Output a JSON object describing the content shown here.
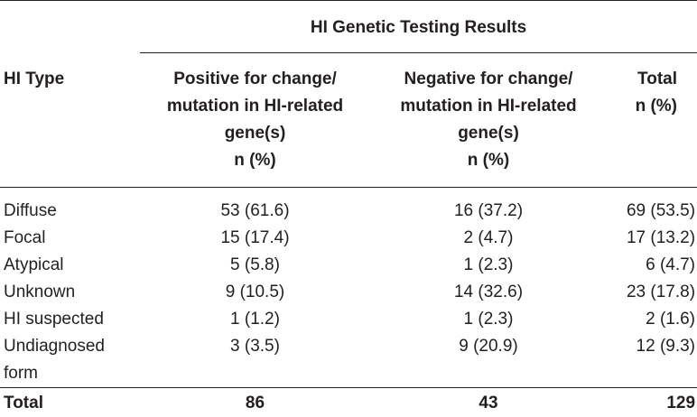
{
  "table": {
    "group_header": "HI Genetic Testing Results",
    "row_header": "HI Type",
    "columns": [
      {
        "lines": [
          "Positive for change/",
          "mutation in HI-related",
          "gene(s)",
          "n (%)"
        ]
      },
      {
        "lines": [
          "Negative for change/",
          "mutation in HI-related",
          "gene(s)",
          "n (%)"
        ]
      },
      {
        "lines": [
          "Total",
          "n (%)"
        ]
      }
    ],
    "rows": [
      {
        "label": [
          "Diffuse"
        ],
        "positive": "53 (61.6)",
        "negative": "16 (37.2)",
        "total": "69 (53.5)"
      },
      {
        "label": [
          "Focal"
        ],
        "positive": "15 (17.4)",
        "negative": "2 (4.7)",
        "total": "17 (13.2)"
      },
      {
        "label": [
          "Atypical"
        ],
        "positive": "5 (5.8)",
        "negative": "1 (2.3)",
        "total": "6 (4.7)"
      },
      {
        "label": [
          "Unknown"
        ],
        "positive": "9 (10.5)",
        "negative": "14 (32.6)",
        "total": "23 (17.8)"
      },
      {
        "label": [
          "HI suspected"
        ],
        "positive": "1 (1.2)",
        "negative": "1 (2.3)",
        "total": "2 (1.6)"
      },
      {
        "label": [
          "Undiagnosed",
          "form"
        ],
        "positive": "3 (3.5)",
        "negative": "9 (20.9)",
        "total": "12 (9.3)"
      }
    ],
    "total_row": {
      "label": "Total",
      "positive": "86",
      "negative": "43",
      "total": "129"
    }
  }
}
